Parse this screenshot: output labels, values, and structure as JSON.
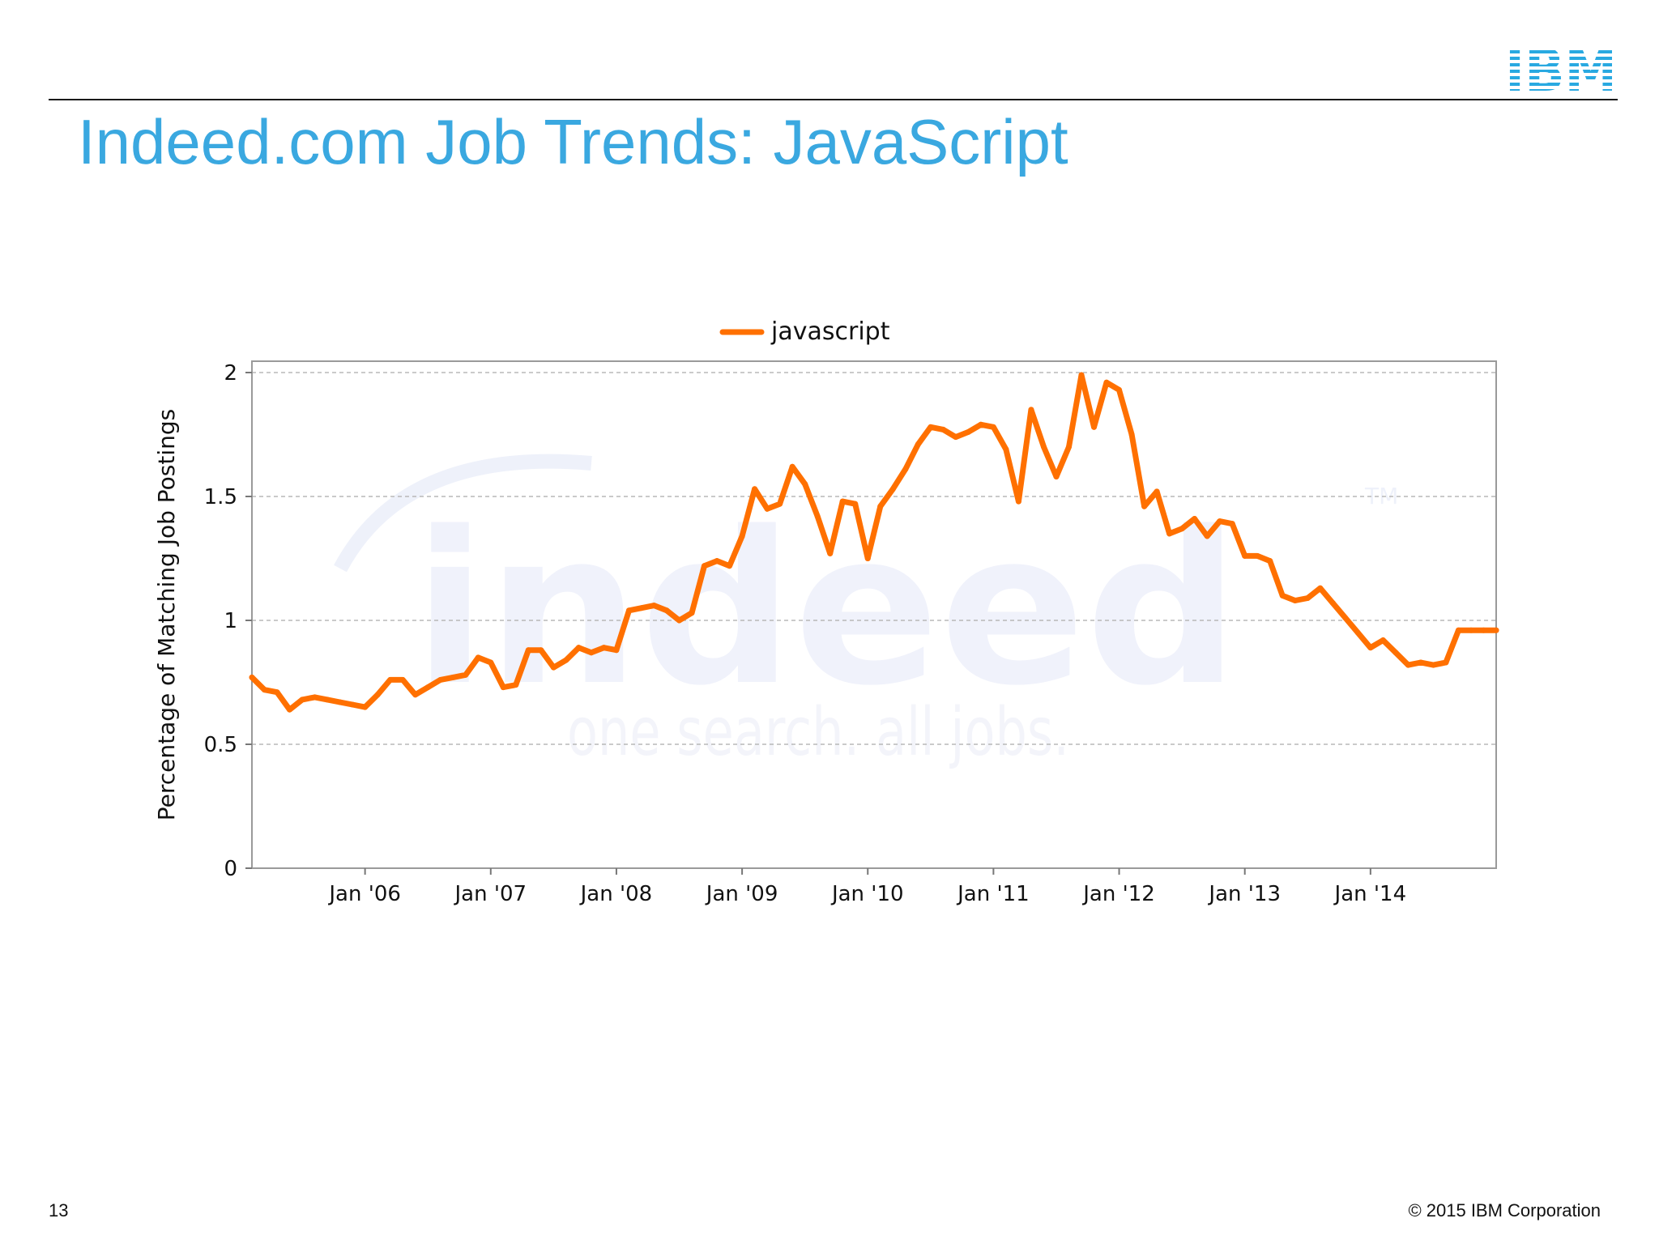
{
  "slide": {
    "title": "Indeed.com Job Trends: JavaScript",
    "page_number": "13",
    "copyright": "© 2015 IBM Corporation",
    "logo_text": "IBM",
    "colors": {
      "title": "#3aa8e0",
      "logo": "#29a9e1",
      "series": "#ff7000"
    }
  },
  "watermark": {
    "main": "indeed",
    "tagline": "one search. all jobs.",
    "tm": "TM"
  },
  "chart_data": {
    "type": "line",
    "title": "",
    "xlabel": "",
    "ylabel": "Percentage of Matching Job Postings",
    "ylim": [
      0,
      2
    ],
    "yticks": [
      0,
      0.5,
      1,
      1.5,
      2
    ],
    "ytick_labels": [
      "0",
      "0.5",
      "1",
      "1.5",
      "2"
    ],
    "xlim": [
      2005.1,
      2015.0
    ],
    "xticks": [
      2006,
      2007,
      2008,
      2009,
      2010,
      2011,
      2012,
      2013,
      2014
    ],
    "xtick_labels": [
      "Jan '06",
      "Jan '07",
      "Jan '08",
      "Jan '09",
      "Jan '10",
      "Jan '11",
      "Jan '12",
      "Jan '13",
      "Jan '14"
    ],
    "grid": true,
    "legend_position": "top-center",
    "series": [
      {
        "name": "javascript",
        "color": "#ff7000",
        "x": [
          2005.1,
          2005.2,
          2005.3,
          2005.4,
          2005.5,
          2005.6,
          2005.7,
          2005.8,
          2005.9,
          2006.0,
          2006.1,
          2006.2,
          2006.3,
          2006.4,
          2006.5,
          2006.6,
          2006.7,
          2006.8,
          2006.9,
          2007.0,
          2007.1,
          2007.2,
          2007.3,
          2007.4,
          2007.5,
          2007.6,
          2007.7,
          2007.8,
          2007.9,
          2008.0,
          2008.1,
          2008.2,
          2008.3,
          2008.4,
          2008.5,
          2008.6,
          2008.7,
          2008.8,
          2008.9,
          2009.0,
          2009.1,
          2009.2,
          2009.3,
          2009.4,
          2009.5,
          2009.6,
          2009.7,
          2009.8,
          2009.9,
          2010.0,
          2010.1,
          2010.2,
          2010.3,
          2010.4,
          2010.5,
          2010.6,
          2010.7,
          2010.8,
          2010.9,
          2011.0,
          2011.1,
          2011.2,
          2011.3,
          2011.4,
          2011.5,
          2011.6,
          2011.7,
          2011.8,
          2011.9,
          2012.0,
          2012.1,
          2012.2,
          2012.3,
          2012.4,
          2012.5,
          2012.6,
          2012.7,
          2012.8,
          2012.9,
          2013.0,
          2013.1,
          2013.2,
          2013.3,
          2013.4,
          2013.5,
          2013.6,
          2013.7,
          2013.8,
          2013.9,
          2014.0,
          2014.1,
          2014.2,
          2014.3,
          2014.4,
          2014.5,
          2014.6,
          2014.7,
          2014.8,
          2014.9,
          2015.0
        ],
        "values": [
          0.77,
          0.72,
          0.71,
          0.64,
          0.68,
          0.69,
          0.68,
          0.67,
          0.66,
          0.65,
          0.7,
          0.76,
          0.76,
          0.7,
          0.73,
          0.76,
          0.77,
          0.78,
          0.85,
          0.83,
          0.73,
          0.74,
          0.88,
          0.88,
          0.81,
          0.84,
          0.89,
          0.87,
          0.89,
          0.88,
          1.04,
          1.05,
          1.06,
          1.04,
          1.0,
          1.03,
          1.22,
          1.24,
          1.22,
          1.34,
          1.53,
          1.45,
          1.47,
          1.62,
          1.55,
          1.42,
          1.27,
          1.48,
          1.47,
          1.25,
          1.46,
          1.53,
          1.61,
          1.71,
          1.78,
          1.77,
          1.74,
          1.76,
          1.79,
          1.78,
          1.69,
          1.48,
          1.85,
          1.7,
          1.58,
          1.7,
          1.99,
          1.78,
          1.96,
          1.93,
          1.75,
          1.46,
          1.52,
          1.35,
          1.37,
          1.41,
          1.34,
          1.4,
          1.39,
          1.26,
          1.26,
          1.24,
          1.1,
          1.08,
          1.09,
          1.13,
          1.07,
          1.01,
          0.95,
          0.89,
          0.92,
          0.87,
          0.82,
          0.83,
          0.82,
          0.83,
          0.96,
          0.96,
          0.96,
          0.96
        ]
      }
    ]
  }
}
